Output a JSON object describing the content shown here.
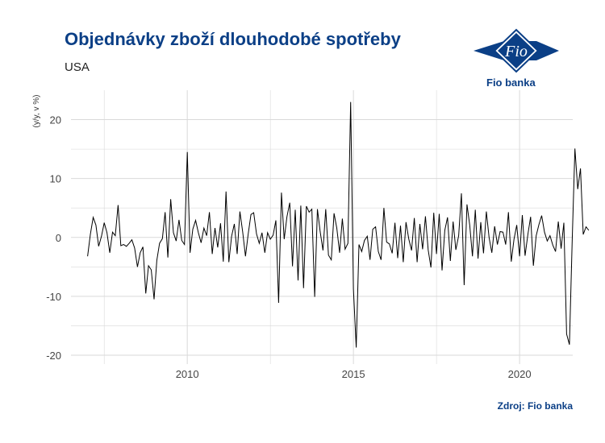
{
  "header": {
    "title": "Objednávky zboží dlouhodobé spotřeby",
    "subtitle": "USA"
  },
  "logo": {
    "brand_text": "Fio banka",
    "mark_text": "Fio"
  },
  "source": "Zdroj: Fio banka",
  "colors": {
    "title": "#0b3f86",
    "line": "#000000",
    "grid": "#d9d9d9"
  },
  "chart_data": {
    "type": "line",
    "title": "Objednávky zboží dlouhodobé spotřeby",
    "subtitle": "USA",
    "ylabel": "(y/y, v %)",
    "xlabel": "",
    "xlim": [
      2006.5,
      2021.6
    ],
    "ylim": [
      -21.5,
      25
    ],
    "x_ticks": [
      2010,
      2015,
      2020
    ],
    "y_ticks": [
      -20,
      -10,
      0,
      10,
      20
    ],
    "grid": true,
    "series": [
      {
        "x_start": 2007.0,
        "x_step": 0.08333,
        "values": [
          -3.2,
          0.5,
          3.4,
          2.1,
          -1.5,
          0.2,
          2.5,
          0.8,
          -2.6,
          0.9,
          0.3,
          5.5,
          -1.4,
          -1.2,
          -1.5,
          -1.0,
          -0.4,
          -1.8,
          -5.0,
          -2.6,
          -1.6,
          -9.5,
          -4.8,
          -5.5,
          -10.5,
          -3.9,
          -1.0,
          -0.2,
          4.3,
          -3.4,
          6.5,
          0.8,
          -0.6,
          3.0,
          -0.5,
          -1.2,
          14.5,
          -2.6,
          1.4,
          2.9,
          0.8,
          -0.9,
          1.6,
          0.3,
          4.3,
          -2.8,
          1.6,
          -1.7,
          2.4,
          -4.1,
          7.8,
          -4.2,
          0.2,
          2.3,
          -2.8,
          4.4,
          1.0,
          -3.2,
          0.6,
          3.9,
          4.2,
          0.6,
          -1.0,
          0.8,
          -2.6,
          0.8,
          -0.3,
          0.4,
          2.9,
          -11.1,
          7.6,
          -0.3,
          3.5,
          5.9,
          -4.9,
          4.7,
          -7.3,
          5.4,
          -8.6,
          5.3,
          4.3,
          4.8,
          -10.1,
          4.8,
          1.0,
          -2.2,
          4.8,
          -3.0,
          -3.8,
          4.1,
          1.6,
          -2.6,
          3.2,
          -2.0,
          -1.0,
          23.0,
          -8.7,
          -18.7,
          -1.2,
          -2.4,
          -0.5,
          0.2,
          -3.8,
          1.4,
          1.8,
          -2.4,
          -3.8,
          5.0,
          -0.8,
          -1.1,
          -2.7,
          2.5,
          -3.5,
          2.0,
          -4.2,
          2.6,
          -0.3,
          -2.2,
          3.3,
          -4.2,
          2.3,
          -2.0,
          3.6,
          -2.1,
          -5.1,
          4.2,
          -2.8,
          4.0,
          -5.6,
          1.2,
          3.4,
          -4.0,
          2.7,
          -2.1,
          0.3,
          7.5,
          -8.1,
          5.6,
          2.1,
          -3.2,
          4.7,
          -3.6,
          2.6,
          -2.7,
          4.4,
          0.0,
          -2.6,
          1.9,
          -1.2,
          1.0,
          0.9,
          -1.2,
          4.3,
          -4.1,
          -0.3,
          2.1,
          -3.2,
          3.8,
          -3.1,
          0.5,
          3.5,
          -4.8,
          0.3,
          2.2,
          3.7,
          0.9,
          -0.6,
          0.3,
          -1.3,
          -2.4,
          2.7,
          -1.9,
          2.5,
          -16.4,
          -18.2,
          -0.7,
          15.1,
          8.2,
          11.7,
          0.5,
          1.8,
          1.2
        ]
      }
    ]
  }
}
